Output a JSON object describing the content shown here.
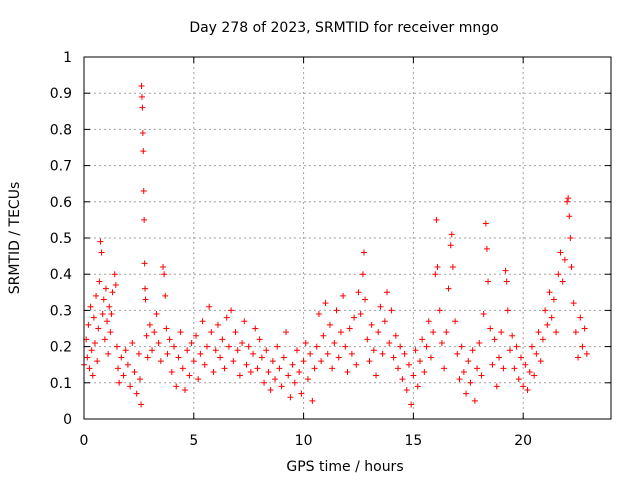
{
  "chart_data": {
    "type": "scatter",
    "title": "Day 278 of 2023, SRMTID for receiver mngo",
    "xlabel": "GPS time / hours",
    "ylabel": "SRMTID / TECUs",
    "xlim": [
      0,
      24
    ],
    "ylim": [
      0,
      1
    ],
    "x_ticks": [
      "0",
      "5",
      "10",
      "15",
      "20"
    ],
    "y_ticks": [
      "0",
      "0.1",
      "0.2",
      "0.3",
      "0.4",
      "0.5",
      "0.6",
      "0.7",
      "0.8",
      "0.9",
      "1"
    ],
    "grid": true,
    "marker": "plus",
    "series": [
      {
        "name": "mngo",
        "color": "#ff0000",
        "points": [
          [
            0.0,
            0.15
          ],
          [
            0.1,
            0.22
          ],
          [
            0.15,
            0.17
          ],
          [
            0.2,
            0.26
          ],
          [
            0.25,
            0.14
          ],
          [
            0.3,
            0.31
          ],
          [
            0.35,
            0.19
          ],
          [
            0.4,
            0.12
          ],
          [
            0.45,
            0.28
          ],
          [
            0.5,
            0.21
          ],
          [
            0.55,
            0.34
          ],
          [
            0.6,
            0.16
          ],
          [
            0.65,
            0.25
          ],
          [
            0.7,
            0.38
          ],
          [
            0.75,
            0.49
          ],
          [
            0.8,
            0.46
          ],
          [
            0.85,
            0.29
          ],
          [
            0.9,
            0.33
          ],
          [
            0.95,
            0.22
          ],
          [
            1.0,
            0.36
          ],
          [
            1.05,
            0.27
          ],
          [
            1.1,
            0.18
          ],
          [
            1.15,
            0.31
          ],
          [
            1.2,
            0.24
          ],
          [
            1.25,
            0.29
          ],
          [
            1.3,
            0.35
          ],
          [
            1.4,
            0.4
          ],
          [
            1.45,
            0.37
          ],
          [
            1.5,
            0.2
          ],
          [
            1.55,
            0.14
          ],
          [
            1.6,
            0.1
          ],
          [
            1.7,
            0.17
          ],
          [
            1.8,
            0.12
          ],
          [
            1.9,
            0.19
          ],
          [
            2.0,
            0.15
          ],
          [
            2.1,
            0.09
          ],
          [
            2.2,
            0.21
          ],
          [
            2.3,
            0.13
          ],
          [
            2.4,
            0.07
          ],
          [
            2.5,
            0.18
          ],
          [
            2.55,
            0.11
          ],
          [
            2.6,
            0.04
          ],
          [
            2.62,
            0.92
          ],
          [
            2.64,
            0.89
          ],
          [
            2.66,
            0.86
          ],
          [
            2.68,
            0.79
          ],
          [
            2.7,
            0.74
          ],
          [
            2.72,
            0.63
          ],
          [
            2.74,
            0.55
          ],
          [
            2.76,
            0.43
          ],
          [
            2.78,
            0.36
          ],
          [
            2.8,
            0.33
          ],
          [
            2.85,
            0.23
          ],
          [
            2.9,
            0.17
          ],
          [
            3.0,
            0.26
          ],
          [
            3.1,
            0.19
          ],
          [
            3.2,
            0.24
          ],
          [
            3.3,
            0.29
          ],
          [
            3.4,
            0.21
          ],
          [
            3.5,
            0.16
          ],
          [
            3.6,
            0.42
          ],
          [
            3.65,
            0.4
          ],
          [
            3.7,
            0.34
          ],
          [
            3.75,
            0.25
          ],
          [
            3.8,
            0.18
          ],
          [
            3.9,
            0.22
          ],
          [
            4.0,
            0.13
          ],
          [
            4.1,
            0.2
          ],
          [
            4.2,
            0.09
          ],
          [
            4.3,
            0.17
          ],
          [
            4.4,
            0.24
          ],
          [
            4.5,
            0.14
          ],
          [
            4.6,
            0.08
          ],
          [
            4.7,
            0.19
          ],
          [
            4.8,
            0.12
          ],
          [
            4.9,
            0.21
          ],
          [
            5.0,
            0.16
          ],
          [
            5.1,
            0.23
          ],
          [
            5.2,
            0.11
          ],
          [
            5.3,
            0.18
          ],
          [
            5.4,
            0.27
          ],
          [
            5.5,
            0.15
          ],
          [
            5.6,
            0.2
          ],
          [
            5.7,
            0.31
          ],
          [
            5.8,
            0.24
          ],
          [
            5.9,
            0.13
          ],
          [
            6.0,
            0.19
          ],
          [
            6.1,
            0.26
          ],
          [
            6.2,
            0.17
          ],
          [
            6.3,
            0.22
          ],
          [
            6.4,
            0.14
          ],
          [
            6.5,
            0.28
          ],
          [
            6.6,
            0.2
          ],
          [
            6.7,
            0.3
          ],
          [
            6.8,
            0.16
          ],
          [
            6.9,
            0.24
          ],
          [
            7.0,
            0.19
          ],
          [
            7.1,
            0.12
          ],
          [
            7.2,
            0.21
          ],
          [
            7.3,
            0.27
          ],
          [
            7.4,
            0.15
          ],
          [
            7.5,
            0.2
          ],
          [
            7.6,
            0.13
          ],
          [
            7.7,
            0.18
          ],
          [
            7.8,
            0.25
          ],
          [
            7.9,
            0.14
          ],
          [
            8.0,
            0.22
          ],
          [
            8.1,
            0.17
          ],
          [
            8.2,
            0.1
          ],
          [
            8.3,
            0.19
          ],
          [
            8.4,
            0.13
          ],
          [
            8.5,
            0.08
          ],
          [
            8.6,
            0.16
          ],
          [
            8.7,
            0.11
          ],
          [
            8.8,
            0.2
          ],
          [
            8.9,
            0.14
          ],
          [
            9.0,
            0.09
          ],
          [
            9.1,
            0.17
          ],
          [
            9.2,
            0.24
          ],
          [
            9.3,
            0.12
          ],
          [
            9.4,
            0.06
          ],
          [
            9.5,
            0.15
          ],
          [
            9.6,
            0.1
          ],
          [
            9.7,
            0.19
          ],
          [
            9.8,
            0.13
          ],
          [
            9.9,
            0.07
          ],
          [
            10.0,
            0.16
          ],
          [
            10.1,
            0.21
          ],
          [
            10.2,
            0.11
          ],
          [
            10.3,
            0.18
          ],
          [
            10.4,
            0.05
          ],
          [
            10.5,
            0.14
          ],
          [
            10.6,
            0.2
          ],
          [
            10.7,
            0.29
          ],
          [
            10.8,
            0.16
          ],
          [
            10.9,
            0.23
          ],
          [
            11.0,
            0.32
          ],
          [
            11.1,
            0.18
          ],
          [
            11.2,
            0.26
          ],
          [
            11.3,
            0.14
          ],
          [
            11.4,
            0.21
          ],
          [
            11.5,
            0.3
          ],
          [
            11.6,
            0.17
          ],
          [
            11.7,
            0.24
          ],
          [
            11.8,
            0.34
          ],
          [
            11.9,
            0.2
          ],
          [
            12.0,
            0.13
          ],
          [
            12.1,
            0.25
          ],
          [
            12.2,
            0.18
          ],
          [
            12.3,
            0.28
          ],
          [
            12.4,
            0.15
          ],
          [
            12.5,
            0.35
          ],
          [
            12.6,
            0.29
          ],
          [
            12.7,
            0.4
          ],
          [
            12.75,
            0.46
          ],
          [
            12.8,
            0.33
          ],
          [
            12.9,
            0.22
          ],
          [
            13.0,
            0.16
          ],
          [
            13.1,
            0.26
          ],
          [
            13.2,
            0.19
          ],
          [
            13.3,
            0.12
          ],
          [
            13.4,
            0.24
          ],
          [
            13.5,
            0.31
          ],
          [
            13.6,
            0.18
          ],
          [
            13.7,
            0.27
          ],
          [
            13.8,
            0.35
          ],
          [
            13.9,
            0.21
          ],
          [
            14.0,
            0.3
          ],
          [
            14.1,
            0.17
          ],
          [
            14.2,
            0.23
          ],
          [
            14.3,
            0.14
          ],
          [
            14.4,
            0.2
          ],
          [
            14.5,
            0.11
          ],
          [
            14.6,
            0.18
          ],
          [
            14.7,
            0.08
          ],
          [
            14.8,
            0.15
          ],
          [
            14.9,
            0.04
          ],
          [
            15.0,
            0.12
          ],
          [
            15.1,
            0.19
          ],
          [
            15.2,
            0.09
          ],
          [
            15.3,
            0.16
          ],
          [
            15.4,
            0.22
          ],
          [
            15.5,
            0.13
          ],
          [
            15.6,
            0.2
          ],
          [
            15.7,
            0.27
          ],
          [
            15.8,
            0.17
          ],
          [
            15.9,
            0.24
          ],
          [
            16.0,
            0.4
          ],
          [
            16.05,
            0.55
          ],
          [
            16.1,
            0.42
          ],
          [
            16.2,
            0.3
          ],
          [
            16.3,
            0.21
          ],
          [
            16.4,
            0.14
          ],
          [
            16.5,
            0.24
          ],
          [
            16.6,
            0.36
          ],
          [
            16.7,
            0.48
          ],
          [
            16.75,
            0.51
          ],
          [
            16.8,
            0.42
          ],
          [
            16.9,
            0.27
          ],
          [
            17.0,
            0.18
          ],
          [
            17.1,
            0.11
          ],
          [
            17.2,
            0.2
          ],
          [
            17.3,
            0.13
          ],
          [
            17.4,
            0.07
          ],
          [
            17.5,
            0.16
          ],
          [
            17.6,
            0.1
          ],
          [
            17.7,
            0.19
          ],
          [
            17.8,
            0.05
          ],
          [
            17.9,
            0.14
          ],
          [
            18.0,
            0.21
          ],
          [
            18.1,
            0.12
          ],
          [
            18.2,
            0.29
          ],
          [
            18.3,
            0.54
          ],
          [
            18.35,
            0.47
          ],
          [
            18.4,
            0.38
          ],
          [
            18.5,
            0.25
          ],
          [
            18.6,
            0.15
          ],
          [
            18.7,
            0.22
          ],
          [
            18.8,
            0.09
          ],
          [
            18.9,
            0.17
          ],
          [
            19.0,
            0.24
          ],
          [
            19.1,
            0.14
          ],
          [
            19.2,
            0.41
          ],
          [
            19.25,
            0.38
          ],
          [
            19.3,
            0.3
          ],
          [
            19.4,
            0.19
          ],
          [
            19.5,
            0.23
          ],
          [
            19.6,
            0.14
          ],
          [
            19.7,
            0.2
          ],
          [
            19.8,
            0.11
          ],
          [
            19.9,
            0.17
          ],
          [
            20.0,
            0.09
          ],
          [
            20.1,
            0.15
          ],
          [
            20.2,
            0.08
          ],
          [
            20.3,
            0.13
          ],
          [
            20.4,
            0.2
          ],
          [
            20.5,
            0.12
          ],
          [
            20.6,
            0.18
          ],
          [
            20.7,
            0.24
          ],
          [
            20.8,
            0.16
          ],
          [
            20.9,
            0.22
          ],
          [
            21.0,
            0.3
          ],
          [
            21.1,
            0.26
          ],
          [
            21.2,
            0.35
          ],
          [
            21.3,
            0.28
          ],
          [
            21.4,
            0.33
          ],
          [
            21.5,
            0.24
          ],
          [
            21.6,
            0.4
          ],
          [
            21.7,
            0.46
          ],
          [
            21.8,
            0.38
          ],
          [
            21.9,
            0.44
          ],
          [
            22.0,
            0.6
          ],
          [
            22.05,
            0.61
          ],
          [
            22.1,
            0.56
          ],
          [
            22.15,
            0.5
          ],
          [
            22.2,
            0.42
          ],
          [
            22.3,
            0.32
          ],
          [
            22.4,
            0.24
          ],
          [
            22.5,
            0.17
          ],
          [
            22.6,
            0.28
          ],
          [
            22.7,
            0.2
          ],
          [
            22.8,
            0.25
          ],
          [
            22.9,
            0.18
          ]
        ]
      }
    ]
  }
}
